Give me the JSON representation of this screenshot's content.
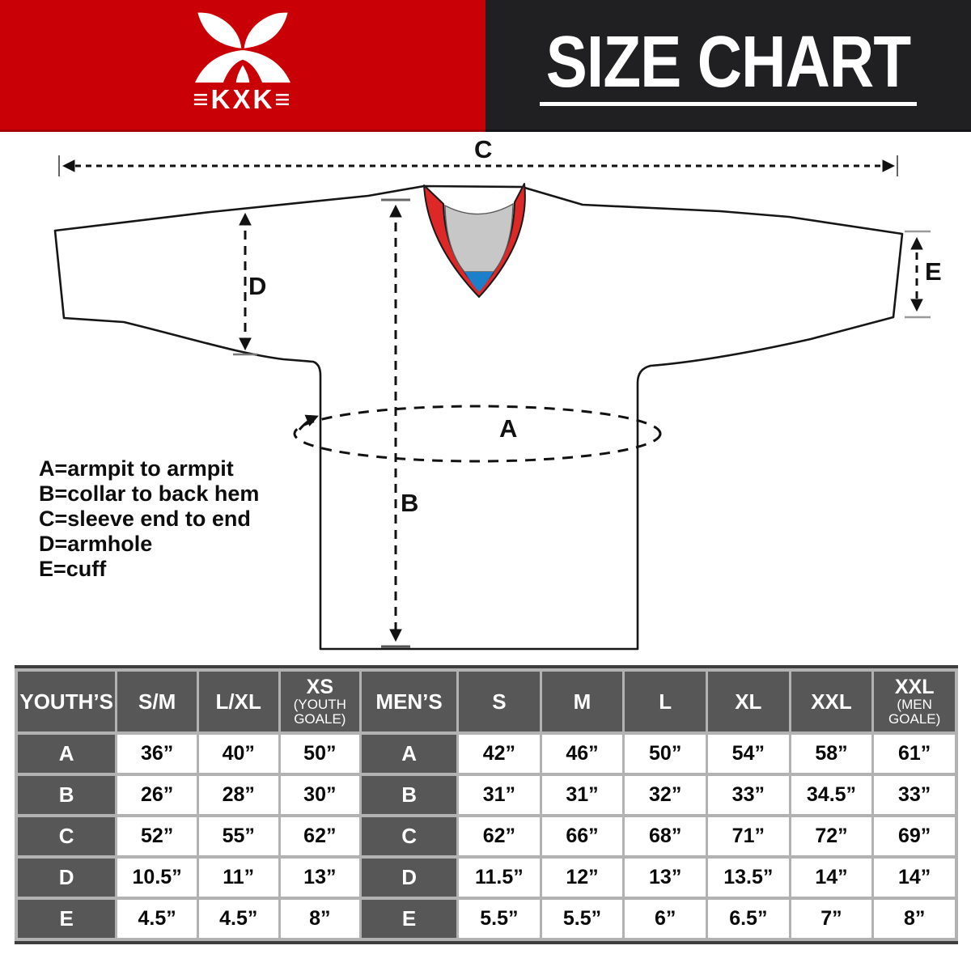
{
  "header": {
    "brand_text": "≡KXK≡",
    "title": "SIZE CHART",
    "colors": {
      "red": "#c90005",
      "black": "#202023"
    }
  },
  "diagram": {
    "dim_labels": {
      "A": "A",
      "B": "B",
      "C": "C",
      "D": "D",
      "E": "E"
    },
    "legend": [
      "A=armpit to armpit",
      "B=collar to back hem",
      "C=sleeve end to end",
      "D=armhole",
      "E=cuff"
    ],
    "colors": {
      "collar_red": "#dd2827",
      "collar_gray": "#c7c7c7",
      "collar_blue": "#1b7fc9"
    }
  },
  "size_table": {
    "youth": {
      "label": "YOUTH’S",
      "columns": [
        {
          "main": "S/M"
        },
        {
          "main": "L/XL"
        },
        {
          "main": "XS",
          "sub": "(YOUTH GOALE)"
        }
      ]
    },
    "men": {
      "label": "MEN’S",
      "columns": [
        {
          "main": "S"
        },
        {
          "main": "M"
        },
        {
          "main": "L"
        },
        {
          "main": "XL"
        },
        {
          "main": "XXL"
        },
        {
          "main": "XXL",
          "sub": "(MEN GOALE)"
        }
      ]
    },
    "rows": [
      {
        "key": "A",
        "youth": [
          "36”",
          "40”",
          "50”"
        ],
        "men": [
          "42”",
          "46”",
          "50”",
          "54”",
          "58”",
          "61”"
        ]
      },
      {
        "key": "B",
        "youth": [
          "26”",
          "28”",
          "30”"
        ],
        "men": [
          "31”",
          "31”",
          "32”",
          "33”",
          "34.5”",
          "33”"
        ]
      },
      {
        "key": "C",
        "youth": [
          "52”",
          "55”",
          "62”"
        ],
        "men": [
          "62”",
          "66”",
          "68”",
          "71”",
          "72”",
          "69”"
        ]
      },
      {
        "key": "D",
        "youth": [
          "10.5”",
          "11”",
          "13”"
        ],
        "men": [
          "11.5”",
          "12”",
          "13”",
          "13.5”",
          "14”",
          "14”"
        ]
      },
      {
        "key": "E",
        "youth": [
          "4.5”",
          "4.5”",
          "8”"
        ],
        "men": [
          "5.5”",
          "5.5”",
          "6”",
          "6.5”",
          "7”",
          "8”"
        ]
      }
    ]
  }
}
